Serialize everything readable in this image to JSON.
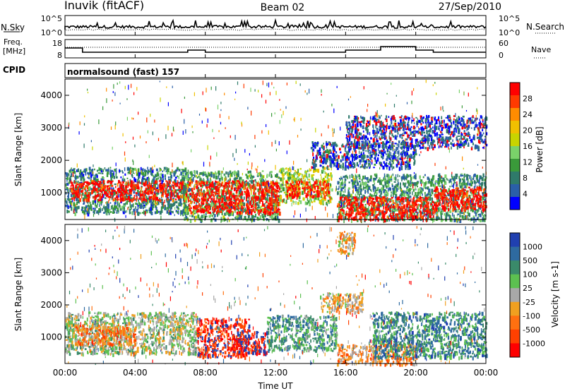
{
  "header": {
    "station": "Inuvik (fitACF)",
    "beam": "Beam 02",
    "date": "27/Sep/2010"
  },
  "sky_panel": {
    "left_label": "N.Sky",
    "right_label": "N.Search",
    "left_ticks": [
      "10^5",
      "10^0"
    ],
    "right_ticks": [
      "10^5",
      "10^0"
    ]
  },
  "freq_panel": {
    "left_label_1": "Freq.",
    "left_label_2": "[MHz]",
    "right_label": "Nave",
    "left_ticks": [
      "18",
      "8"
    ],
    "right_ticks": [
      "60",
      "0"
    ]
  },
  "cpid": {
    "label": "CPID",
    "value": "normalsound (fast) 157"
  },
  "colors": {
    "background": "#ffffff",
    "axis": "#000000"
  },
  "chart_data": [
    {
      "type": "heatmap",
      "name": "power",
      "ylabel": "Slant Range [km]",
      "yticks": [
        1000,
        2000,
        3000,
        4000
      ],
      "ylim": [
        180,
        4500
      ],
      "xlim": [
        0,
        24
      ],
      "colorbar": {
        "label": "Power [dB]",
        "ticks": [
          "28",
          "24",
          "20",
          "16",
          "12",
          "8",
          "4"
        ],
        "colors": [
          "#ff0000",
          "#ff3a00",
          "#ff8c00",
          "#f0c000",
          "#c8d400",
          "#7ad26a",
          "#3a9a3a",
          "#2f7a6a",
          "#2a5fa8",
          "#0000ff"
        ]
      },
      "bands": [
        {
          "t0": 0.0,
          "t1": 7.0,
          "r0": 400,
          "r1": 1800,
          "level": 0.25
        },
        {
          "t0": 0.3,
          "t1": 7.0,
          "r0": 800,
          "r1": 1400,
          "level": 0.95
        },
        {
          "t0": 6.7,
          "t1": 12.2,
          "r0": 180,
          "r1": 1700,
          "level": 0.35
        },
        {
          "t0": 7.0,
          "t1": 12.2,
          "r0": 400,
          "r1": 1400,
          "level": 0.95
        },
        {
          "t0": 12.2,
          "t1": 15.2,
          "r0": 700,
          "r1": 1800,
          "level": 0.5
        },
        {
          "t0": 12.5,
          "t1": 15.0,
          "r0": 900,
          "r1": 1400,
          "level": 0.9
        },
        {
          "t0": 15.5,
          "t1": 24.0,
          "r0": 180,
          "r1": 1600,
          "level": 0.3
        },
        {
          "t0": 15.5,
          "t1": 21.0,
          "r0": 200,
          "r1": 900,
          "level": 0.95
        },
        {
          "t0": 21.0,
          "t1": 24.0,
          "r0": 500,
          "r1": 1200,
          "level": 0.95
        },
        {
          "t0": 14.0,
          "t1": 20.0,
          "r0": 1800,
          "r1": 2600,
          "level": 0.15
        },
        {
          "t0": 16.0,
          "t1": 24.0,
          "r0": 2400,
          "r1": 3400,
          "level": 0.1
        }
      ]
    },
    {
      "type": "heatmap",
      "name": "velocity",
      "ylabel": "Slant Range [km]",
      "xlabel": "Time UT",
      "xticks": [
        "00:00",
        "04:00",
        "08:00",
        "12:00",
        "16:00",
        "20:00",
        "00:00"
      ],
      "yticks": [
        1000,
        2000,
        3000,
        4000
      ],
      "ylim": [
        180,
        4500
      ],
      "xlim": [
        0,
        24
      ],
      "colorbar": {
        "label": "Velocity [m s-1]",
        "ticks": [
          "1000",
          "500",
          "100",
          "25",
          "-25",
          "-100",
          "-500",
          "-1000"
        ],
        "colors": [
          "#2040b0",
          "#2e6aa0",
          "#3a8a6a",
          "#5cc050",
          "#a8a8a8",
          "#f0a020",
          "#ff7010",
          "#ff4000",
          "#ff0000"
        ]
      },
      "bands": [
        {
          "t0": 0.0,
          "t1": 7.5,
          "r0": 500,
          "r1": 1800,
          "level": 0.55
        },
        {
          "t0": 0.5,
          "t1": 4.0,
          "r0": 800,
          "r1": 1400,
          "level": 0.3
        },
        {
          "t0": 7.5,
          "t1": 10.5,
          "r0": 400,
          "r1": 1600,
          "level": 0.1
        },
        {
          "t0": 9.5,
          "t1": 11.5,
          "r0": 500,
          "r1": 1200,
          "level": 0.05
        },
        {
          "t0": 11.5,
          "t1": 15.5,
          "r0": 600,
          "r1": 1700,
          "level": 0.7
        },
        {
          "t0": 15.5,
          "t1": 20.0,
          "r0": 180,
          "r1": 800,
          "level": 0.35
        },
        {
          "t0": 17.5,
          "t1": 24.0,
          "r0": 400,
          "r1": 1800,
          "level": 0.75
        },
        {
          "t0": 14.5,
          "t1": 17.0,
          "r0": 1800,
          "r1": 2400,
          "level": 0.45
        },
        {
          "t0": 15.5,
          "t1": 16.5,
          "r0": 3600,
          "r1": 4300,
          "level": 0.45
        }
      ]
    }
  ]
}
